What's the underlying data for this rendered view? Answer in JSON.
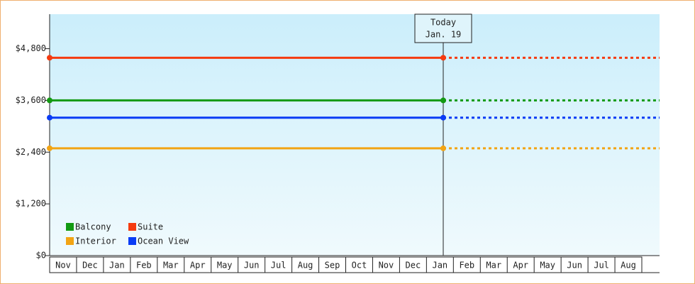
{
  "chart_data": {
    "type": "price-line",
    "ylim": [
      0,
      5600
    ],
    "yticks": [
      {
        "value": 0,
        "label": "$0"
      },
      {
        "value": 1200,
        "label": "$1,200"
      },
      {
        "value": 2400,
        "label": "$2,400"
      },
      {
        "value": 3600,
        "label": "$3,600"
      },
      {
        "value": 4800,
        "label": "$4,800"
      }
    ],
    "categories": [
      "Nov",
      "Dec",
      "Jan",
      "Feb",
      "Mar",
      "Apr",
      "May",
      "Jun",
      "Jul",
      "Aug",
      "Sep",
      "Oct",
      "Nov",
      "Dec",
      "Jan",
      "Feb",
      "Mar",
      "Apr",
      "May",
      "Jun",
      "Jul",
      "Aug"
    ],
    "annotation": [
      "Today",
      "Jan. 19"
    ],
    "series": [
      {
        "name": "Balcony",
        "color": "#139a13",
        "value": 3600
      },
      {
        "name": "Suite",
        "color": "#f53b10",
        "value": 4590
      },
      {
        "name": "Interior",
        "color": "#f2a414",
        "value": 2490
      },
      {
        "name": "Ocean View",
        "color": "#0a3cf5",
        "value": 3200
      }
    ]
  }
}
